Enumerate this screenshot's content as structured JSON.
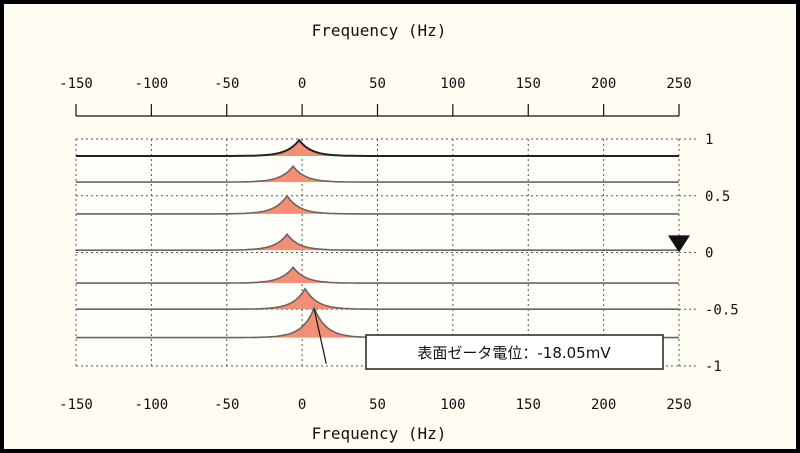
{
  "chart_data": {
    "type": "area",
    "title": "",
    "xlabel_top": "Frequency (Hz)",
    "xlabel_bottom": "Frequency (Hz)",
    "xlim": [
      -150,
      250
    ],
    "x_ticks": [
      -150,
      -100,
      -50,
      0,
      50,
      100,
      150,
      200,
      250
    ],
    "ylim": [
      -1,
      1
    ],
    "y_ticks": [
      1,
      0.5,
      0,
      -0.5,
      -1
    ],
    "y_tick_labels": [
      "1",
      "0.5",
      "0",
      "-0.5",
      "-1"
    ],
    "grid": true,
    "peak_color": "#f08a70",
    "series": [
      {
        "baseline": 0.85,
        "peak_x": -2,
        "amplitude": 0.14
      },
      {
        "baseline": 0.62,
        "peak_x": -6,
        "amplitude": 0.14
      },
      {
        "baseline": 0.34,
        "peak_x": -10,
        "amplitude": 0.16
      },
      {
        "baseline": 0.02,
        "peak_x": -10,
        "amplitude": 0.14
      },
      {
        "baseline": -0.27,
        "peak_x": -6,
        "amplitude": 0.14
      },
      {
        "baseline": -0.5,
        "peak_x": 2,
        "amplitude": 0.18
      },
      {
        "baseline": -0.75,
        "peak_x": 8,
        "amplitude": 0.26
      }
    ],
    "marker": {
      "x": 250,
      "y": 0.08,
      "shape": "down-triangle"
    },
    "annotation": {
      "text": "表面ゼータ電位：-18.05mV",
      "pointer_from_x": 8,
      "pointer_from_y": -0.5,
      "pointer_to_x": 16,
      "pointer_to_y": -0.98
    }
  }
}
